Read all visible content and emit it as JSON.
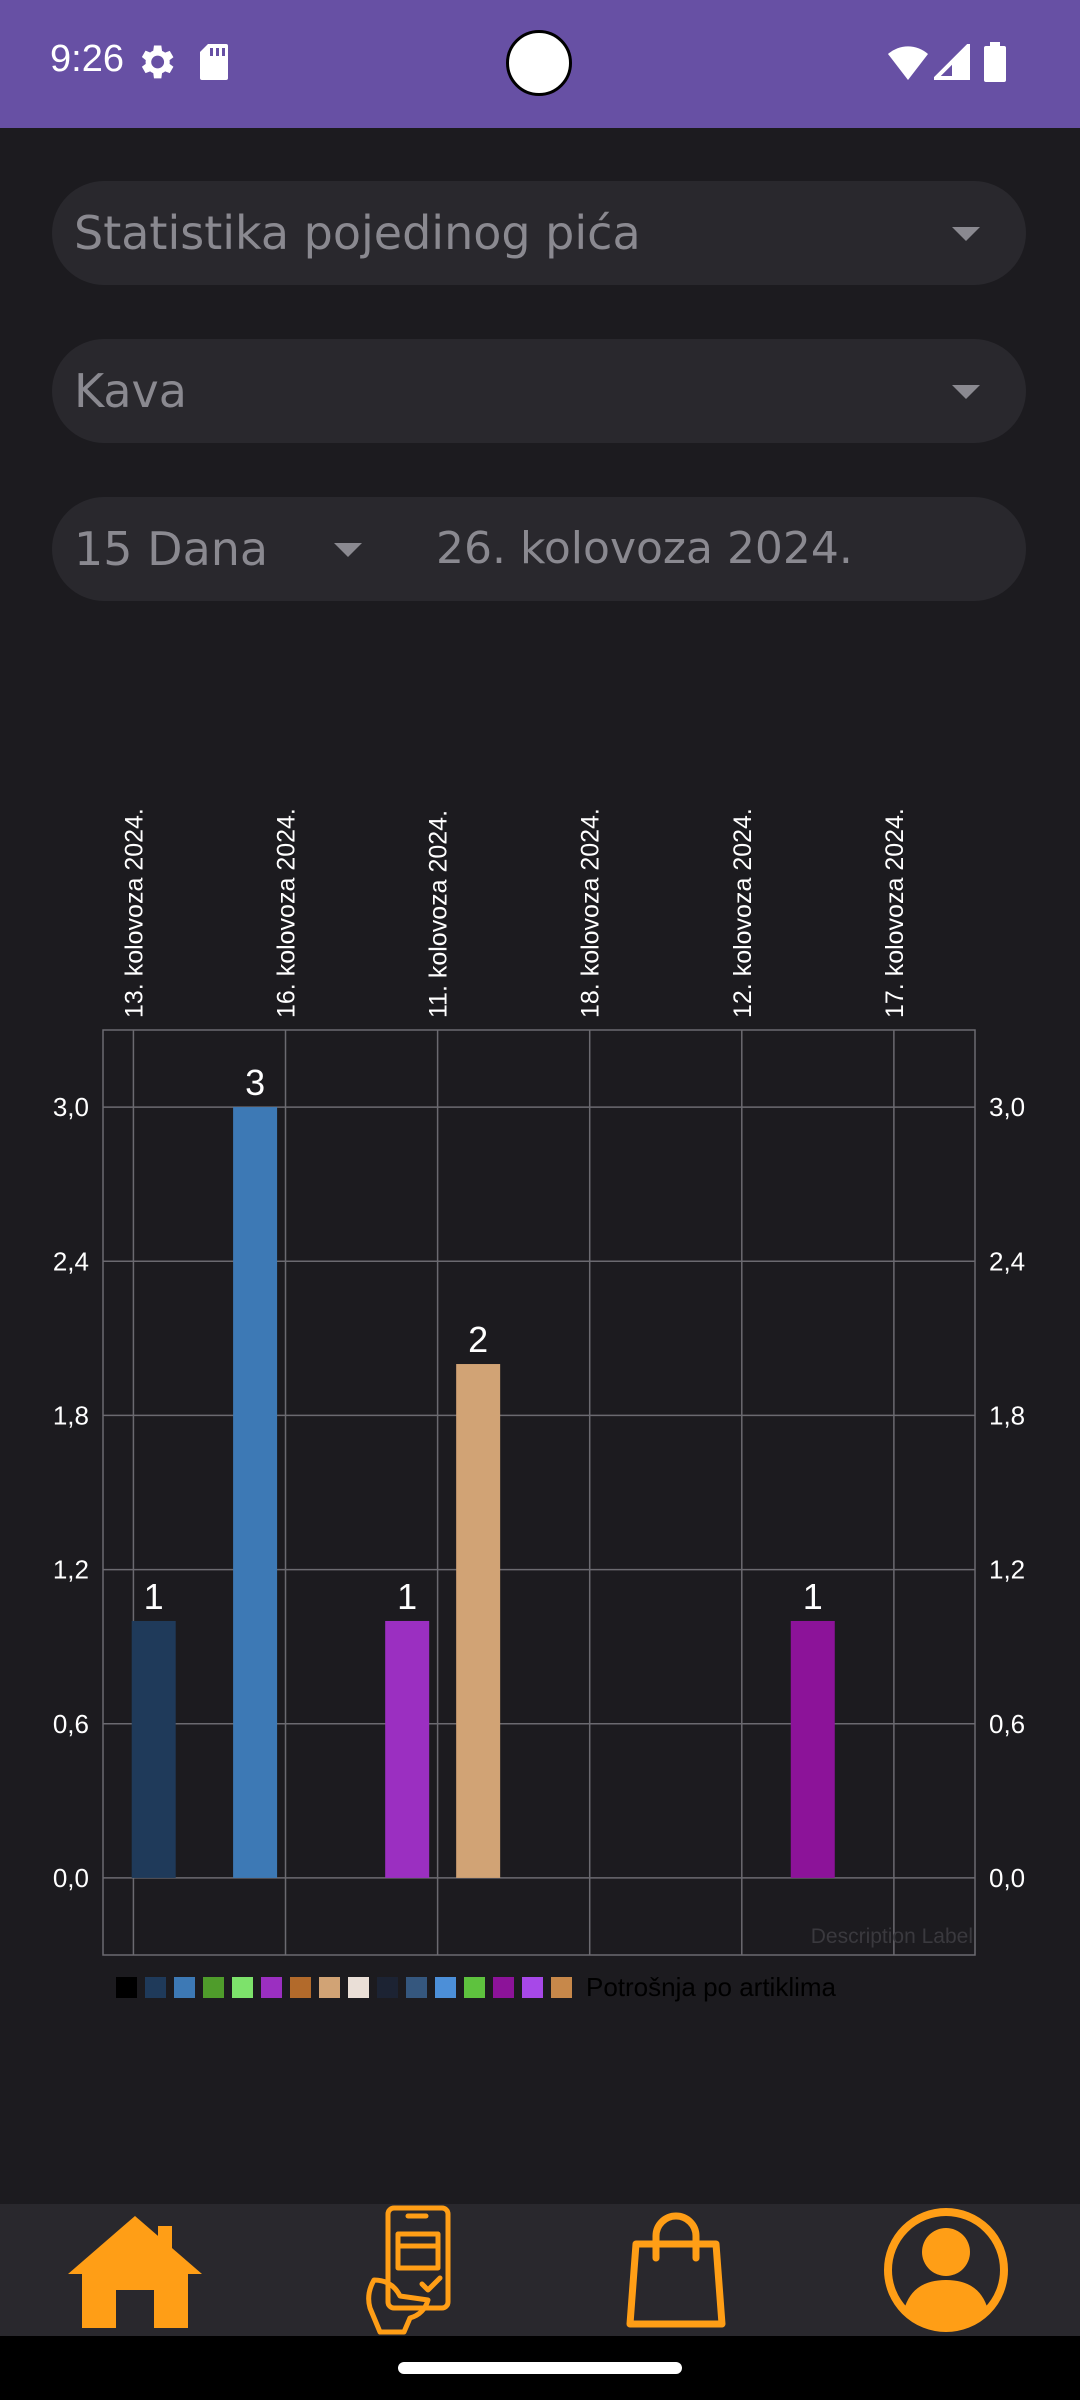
{
  "status_bar": {
    "time": "9:26",
    "icons": [
      "gear-icon",
      "sd-card-icon",
      "wifi-icon",
      "signal-icon",
      "battery-icon"
    ]
  },
  "filters": {
    "stat_type": "Statistika pojedinog pića",
    "drink": "Kava",
    "period": "15 Dana",
    "date": "26. kolovoza 2024."
  },
  "colors": {
    "status_bar": "#6750a4",
    "background": "#1c1b1f",
    "field": "#29282d",
    "nav_icon": "#ff9e16"
  },
  "chart_data": {
    "type": "bar",
    "categories": [
      "13. kolovoza 2024.",
      "16. kolovoza 2024.",
      "11. kolovoza 2024.",
      "18. kolovoza 2024.",
      "12. kolovoza 2024.",
      "17. kolovoza 2024."
    ],
    "bars": [
      {
        "x": 0.5,
        "value": 1,
        "label": "1",
        "color": "#1f3a5a"
      },
      {
        "x": 1.5,
        "value": 3,
        "label": "3",
        "color": "#3d79b5"
      },
      {
        "x": 3.0,
        "value": 1,
        "label": "1",
        "color": "#9b2fc1"
      },
      {
        "x": 3.7,
        "value": 2,
        "label": "2",
        "color": "#d1a375"
      },
      {
        "x": 7.0,
        "value": 1,
        "label": "1",
        "color": "#8c1399"
      }
    ],
    "y_ticks": [
      "0,0",
      "0,6",
      "1,2",
      "1,8",
      "2,4",
      "3,0"
    ],
    "ylim": [
      -0.3,
      3.3
    ],
    "grid": true,
    "description": "Description Label",
    "legend_colors": [
      "#000000",
      "#1f3a5a",
      "#3d79b5",
      "#4f9c2b",
      "#7de26b",
      "#9b2fc1",
      "#b26a2b",
      "#d1a375",
      "#eadfd7",
      "#1c2333",
      "#35577e",
      "#4c8fd8",
      "#5ec23e",
      "#8c1399",
      "#a748e8",
      "#c7884a"
    ],
    "legend_label": "Potrošnja po artiklima"
  },
  "nav": {
    "items": [
      "home-icon",
      "phone-order-icon",
      "shopping-bag-icon",
      "profile-icon"
    ]
  }
}
